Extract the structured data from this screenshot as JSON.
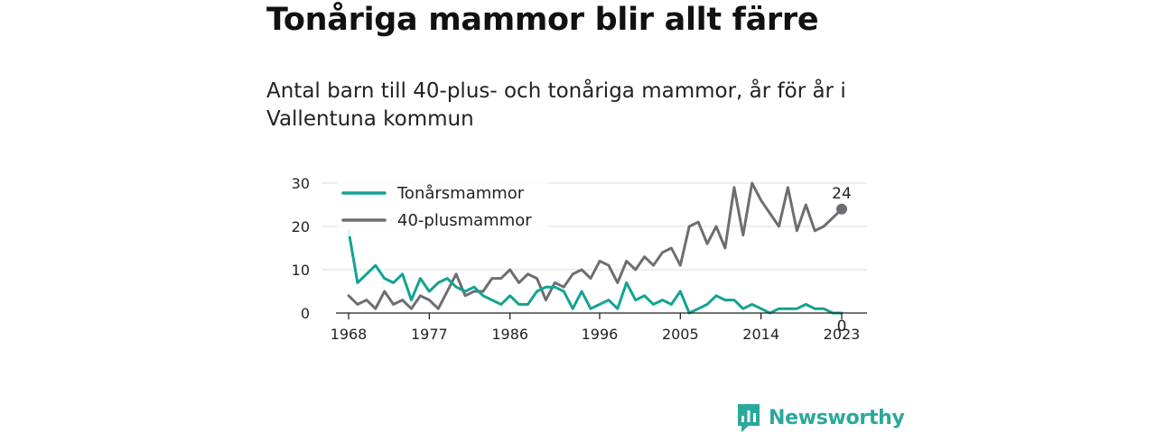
{
  "title": "Tonåriga mammor blir allt färre",
  "subtitle": "Antal barn till 40-plus- och tonåriga mammor, år för år i Vallentuna kommun",
  "brand": "Newsworthy",
  "colors": {
    "teal": "#13a393",
    "gray": "#6d6e73",
    "grid": "#dddddd",
    "axis": "#222222"
  },
  "chart_data": {
    "type": "line",
    "x_tick_labels": [
      "1968",
      "1977",
      "1986",
      "1996",
      "2005",
      "2014",
      "2023"
    ],
    "y_tick_labels": [
      "0",
      "10",
      "20",
      "30"
    ],
    "xlim": [
      1968,
      2023
    ],
    "ylim": [
      0,
      30
    ],
    "grid": true,
    "legend_position": "top-left",
    "x": [
      1968,
      1969,
      1970,
      1971,
      1972,
      1973,
      1974,
      1975,
      1976,
      1977,
      1978,
      1979,
      1980,
      1981,
      1982,
      1983,
      1984,
      1985,
      1986,
      1987,
      1988,
      1989,
      1990,
      1991,
      1992,
      1993,
      1994,
      1995,
      1996,
      1997,
      1998,
      1999,
      2000,
      2001,
      2002,
      2003,
      2004,
      2005,
      2006,
      2007,
      2008,
      2009,
      2010,
      2011,
      2012,
      2013,
      2014,
      2015,
      2016,
      2017,
      2018,
      2019,
      2020,
      2021,
      2022,
      2023
    ],
    "series": [
      {
        "name": "Tonårsmammor",
        "color": "#13a393",
        "end_label": "0",
        "values": [
          19,
          7,
          9,
          11,
          8,
          7,
          9,
          3,
          8,
          5,
          7,
          8,
          6,
          5,
          6,
          4,
          3,
          2,
          4,
          2,
          2,
          5,
          6,
          6,
          5,
          1,
          5,
          1,
          2,
          3,
          1,
          7,
          3,
          4,
          2,
          3,
          2,
          5,
          0,
          1,
          2,
          4,
          3,
          3,
          1,
          2,
          1,
          0,
          1,
          1,
          1,
          2,
          1,
          1,
          0,
          0
        ]
      },
      {
        "name": "40-plusmammor",
        "color": "#6d6e73",
        "end_label": "24",
        "values": [
          4,
          2,
          3,
          1,
          5,
          2,
          3,
          1,
          4,
          3,
          1,
          5,
          9,
          4,
          5,
          5,
          8,
          8,
          10,
          7,
          9,
          8,
          3,
          7,
          6,
          9,
          10,
          8,
          12,
          11,
          7,
          12,
          10,
          13,
          11,
          14,
          15,
          11,
          20,
          21,
          16,
          20,
          15,
          29,
          18,
          30,
          26,
          23,
          20,
          29,
          19,
          25,
          19,
          20,
          22,
          24
        ]
      }
    ]
  }
}
